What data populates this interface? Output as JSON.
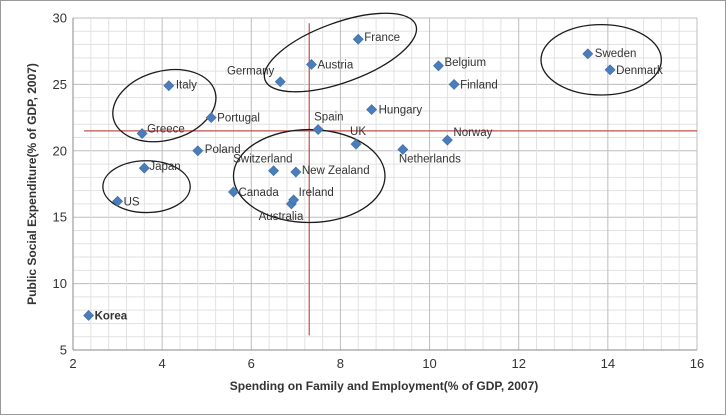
{
  "chart_data": {
    "type": "scatter",
    "title": "",
    "xlabel": "Spending on Family and Employment(% of GDP, 2007)",
    "ylabel": "Public Social Expenditure(% of GDP, 2007)",
    "xlim": [
      2,
      16
    ],
    "ylim": [
      5,
      30
    ],
    "xticks": [
      2,
      4,
      6,
      8,
      10,
      12,
      14,
      16
    ],
    "yticks": [
      5,
      10,
      15,
      20,
      25,
      30
    ],
    "grid": true,
    "marker_color": "#4a7ebb",
    "reference_line_color": "#c0504d",
    "reference_lines": {
      "x": 7.3,
      "y": 21.5
    },
    "points": [
      {
        "label": "Korea",
        "x": 2.35,
        "y": 7.6,
        "bold": true
      },
      {
        "label": "US",
        "x": 3.0,
        "y": 16.2
      },
      {
        "label": "Japan",
        "x": 3.6,
        "y": 18.7
      },
      {
        "label": "Greece",
        "x": 3.55,
        "y": 21.3
      },
      {
        "label": "Italy",
        "x": 4.15,
        "y": 24.9
      },
      {
        "label": "Poland",
        "x": 4.8,
        "y": 20.0
      },
      {
        "label": "Portugal",
        "x": 5.1,
        "y": 22.5
      },
      {
        "label": "Canada",
        "x": 5.6,
        "y": 16.9
      },
      {
        "label": "Switzerland",
        "x": 6.5,
        "y": 18.5
      },
      {
        "label": "Australia",
        "x": 6.9,
        "y": 16.0
      },
      {
        "label": "Ireland",
        "x": 6.95,
        "y": 16.3
      },
      {
        "label": "New Zealand",
        "x": 7.0,
        "y": 18.4
      },
      {
        "label": "Germany",
        "x": 6.65,
        "y": 25.2
      },
      {
        "label": "Austria",
        "x": 7.35,
        "y": 26.5
      },
      {
        "label": "Spain",
        "x": 7.5,
        "y": 21.6
      },
      {
        "label": "France",
        "x": 8.4,
        "y": 28.4
      },
      {
        "label": "UK",
        "x": 8.35,
        "y": 20.5
      },
      {
        "label": "Hungary",
        "x": 8.7,
        "y": 23.1
      },
      {
        "label": "Netherlands",
        "x": 9.4,
        "y": 20.1
      },
      {
        "label": "Belgium",
        "x": 10.2,
        "y": 26.4
      },
      {
        "label": "Norway",
        "x": 10.4,
        "y": 20.8
      },
      {
        "label": "Finland",
        "x": 10.55,
        "y": 25.0
      },
      {
        "label": "Sweden",
        "x": 13.55,
        "y": 27.3
      },
      {
        "label": "Denmark",
        "x": 14.05,
        "y": 26.1
      }
    ],
    "cluster_outlines": [
      {
        "cx": 4.05,
        "cy": 23.4,
        "rx": 1.18,
        "ry": 2.6,
        "rot": -15
      },
      {
        "cx": 3.65,
        "cy": 17.3,
        "rx": 0.98,
        "ry": 1.95,
        "rot": 0
      },
      {
        "cx": 8.0,
        "cy": 27.4,
        "rx": 1.8,
        "ry": 2.25,
        "rot": -20
      },
      {
        "cx": 7.3,
        "cy": 18.1,
        "rx": 1.7,
        "ry": 3.5,
        "rot": 0
      },
      {
        "cx": 13.85,
        "cy": 26.85,
        "rx": 1.35,
        "ry": 2.65,
        "rot": 0
      }
    ]
  }
}
